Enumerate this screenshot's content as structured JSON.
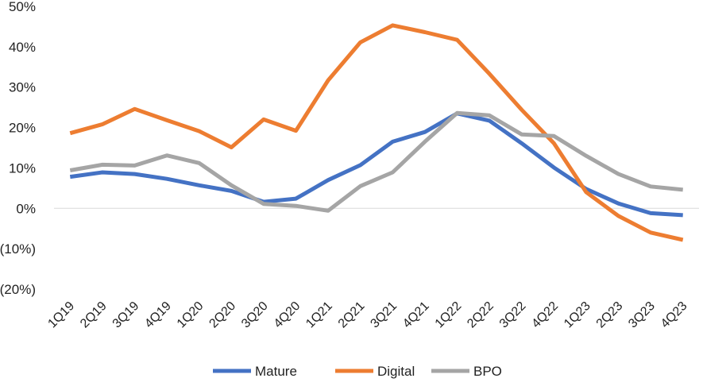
{
  "chart_data": {
    "type": "line",
    "title": "",
    "xlabel": "",
    "ylabel": "",
    "categories": [
      "1Q19",
      "2Q19",
      "3Q19",
      "4Q19",
      "1Q20",
      "2Q20",
      "3Q20",
      "4Q20",
      "1Q21",
      "2Q21",
      "3Q21",
      "4Q21",
      "1Q22",
      "2Q22",
      "3Q22",
      "4Q22",
      "1Q23",
      "2Q23",
      "3Q23",
      "4Q23"
    ],
    "y_ticks": [
      50,
      40,
      30,
      20,
      10,
      0,
      -10,
      -20
    ],
    "y_tick_labels": [
      "50%",
      "40%",
      "30%",
      "20%",
      "10%",
      "0%",
      "(10%)",
      "(20%)"
    ],
    "ylim": [
      -20,
      50
    ],
    "units": "percent",
    "grid": false,
    "zero_line": true,
    "legend_position": "bottom",
    "series": [
      {
        "name": "Mature",
        "color": "#4472C4",
        "values": [
          7.8,
          8.9,
          8.5,
          7.3,
          5.7,
          4.3,
          1.6,
          2.4,
          7.0,
          10.7,
          16.5,
          18.9,
          23.5,
          21.7,
          16.1,
          10.1,
          4.8,
          1.2,
          -1.2,
          -1.7
        ]
      },
      {
        "name": "Digital",
        "color": "#ED7D31",
        "values": [
          18.6,
          20.8,
          24.6,
          21.8,
          19.1,
          15.1,
          22.0,
          19.2,
          31.7,
          41.1,
          45.3,
          43.6,
          41.7,
          33.3,
          24.4,
          16.1,
          4.0,
          -1.9,
          -6.0,
          -7.8
        ]
      },
      {
        "name": "BPO",
        "color": "#A5A5A5",
        "values": [
          9.4,
          10.8,
          10.6,
          13.1,
          11.2,
          5.7,
          1.1,
          0.6,
          -0.6,
          5.5,
          8.9,
          16.5,
          23.6,
          23.0,
          18.3,
          17.9,
          13.0,
          8.5,
          5.4,
          4.6
        ]
      }
    ]
  }
}
